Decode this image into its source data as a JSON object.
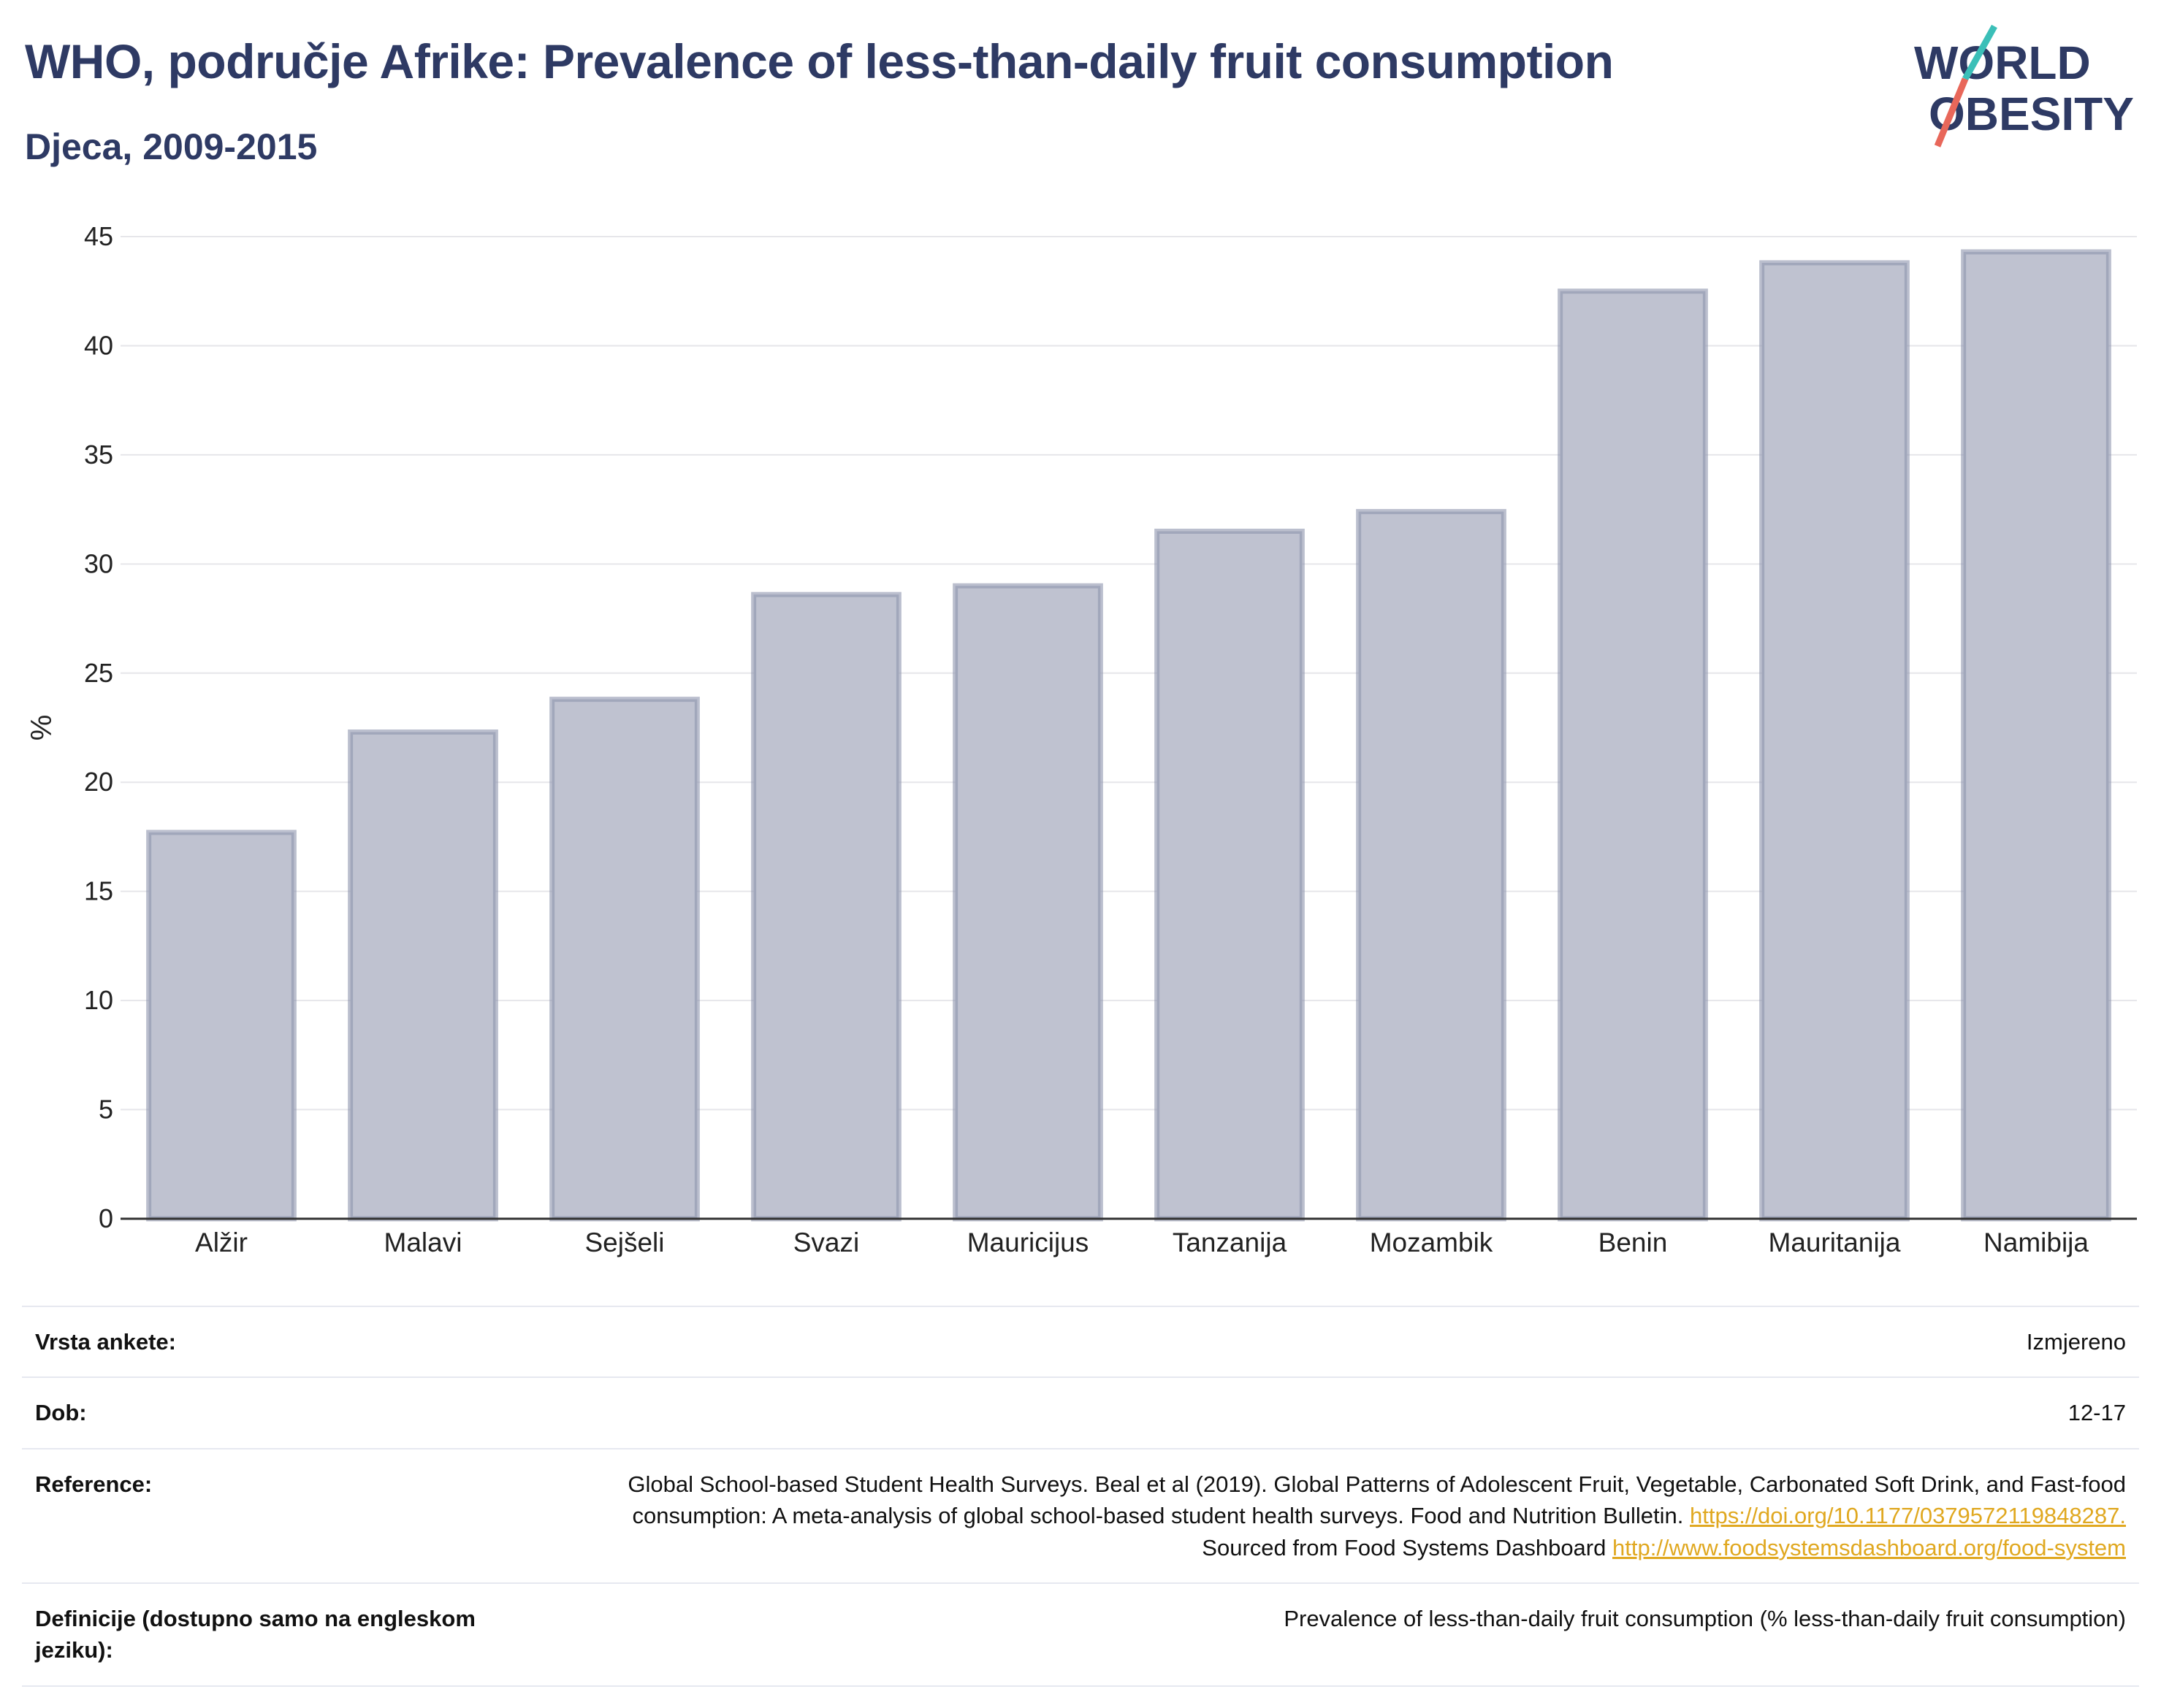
{
  "header": {
    "title": "WHO, područje Afrike: Prevalence of less-than-daily fruit consumption",
    "subtitle": "Djeca, 2009-2015"
  },
  "logo": {
    "line1": "WORLD",
    "line2": "OBESITY",
    "text_color": "#2e3a64",
    "accent_teal": "#3bbfb8",
    "accent_red": "#e8675a"
  },
  "chart_data": {
    "type": "bar",
    "ylabel": "%",
    "ylim": [
      0,
      45
    ],
    "yticks": [
      0,
      5,
      10,
      15,
      20,
      25,
      30,
      35,
      40,
      45
    ],
    "grid": true,
    "categories": [
      "Alžir",
      "Malavi",
      "Sejšeli",
      "Svazi",
      "Mauricijus",
      "Tanzanija",
      "Mozambik",
      "Benin",
      "Mauritanija",
      "Namibija"
    ],
    "values": [
      17.7,
      22.3,
      23.8,
      28.6,
      29.0,
      31.5,
      32.4,
      42.5,
      43.8,
      44.3
    ],
    "bar_fill": "#bfc2d0",
    "bar_stroke": "#8e94ad"
  },
  "meta": {
    "survey_label": "Vrsta ankete:",
    "survey_value": "Izmjereno",
    "age_label": "Dob:",
    "age_value": "12-17",
    "reference_label": "Reference:",
    "reference_text_1": "Global School-based Student Health Surveys. Beal et al (2019). Global Patterns of Adolescent Fruit, Vegetable, Carbonated Soft Drink, and Fast-food consumption: A meta-analysis of global school-based student health surveys. Food and Nutrition Bulletin.",
    "reference_link_1": "https://doi.org/10.1177/0379572119848287.",
    "reference_text_2": "Sourced from Food Systems Dashboard",
    "reference_link_2": "http://www.foodsystemsdashboard.org/food-system",
    "definition_label": "Definicije (dostupno samo na engleskom jeziku):",
    "definition_value": "Prevalence of less-than-daily fruit consumption (% less-than-daily fruit consumption)"
  }
}
